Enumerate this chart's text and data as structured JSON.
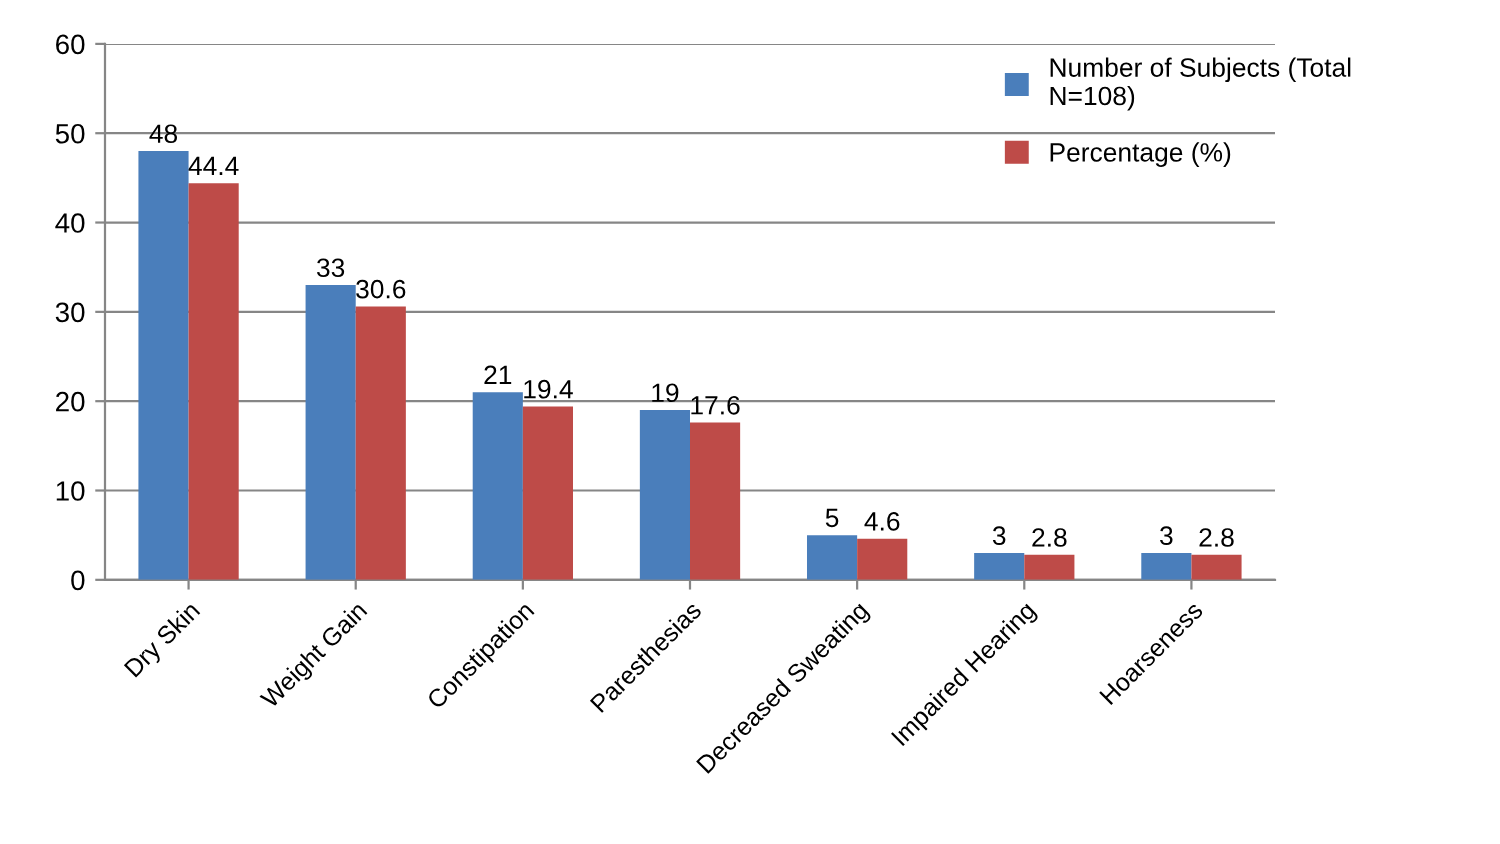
{
  "chart_data": {
    "type": "bar",
    "categories": [
      "Dry Skin",
      "Weight Gain",
      "Constipation",
      "Paresthesias",
      "Decreased Sweating",
      "Impaired Hearing",
      "Hoarseness"
    ],
    "series": [
      {
        "name": "Number of Subjects (Total\nN=108)",
        "color": "#4a7ebb",
        "values": [
          48,
          33,
          21,
          19,
          5,
          3,
          3
        ]
      },
      {
        "name": "Percentage (%)",
        "color": "#be4b48",
        "values": [
          44.4,
          30.6,
          19.4,
          17.6,
          4.6,
          2.8,
          2.8
        ]
      }
    ],
    "ylim": [
      0,
      60
    ],
    "yticks": [
      0,
      10,
      20,
      30,
      40,
      50,
      60
    ],
    "grid": "y",
    "legend": "right",
    "data_labels": true
  }
}
